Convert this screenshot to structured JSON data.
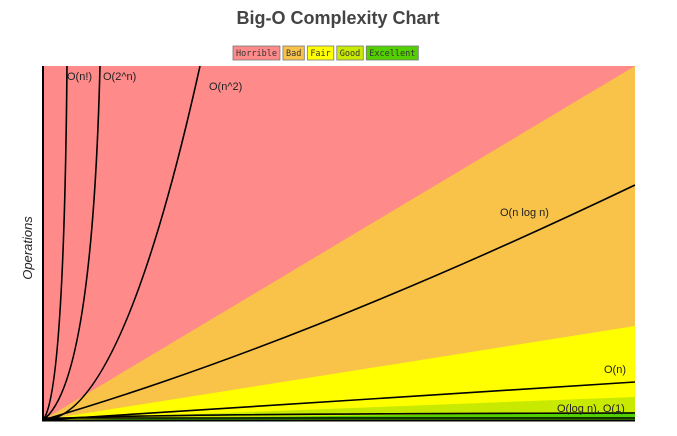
{
  "title": "Big-O Complexity Chart",
  "legend": [
    {
      "label": "Horrible",
      "color": "#fe8a8a"
    },
    {
      "label": "Bad",
      "color": "#f9c34a"
    },
    {
      "label": "Fair",
      "color": "#ffff00"
    },
    {
      "label": "Good",
      "color": "#c8ea00"
    },
    {
      "label": "Excellent",
      "color": "#53d000"
    }
  ],
  "y_axis_label": "Operations",
  "curves": [
    "O(n!)",
    "O(2^n)",
    "O(n^2)",
    "O(n log n)",
    "O(n)",
    "O(log n), O(1)"
  ]
}
